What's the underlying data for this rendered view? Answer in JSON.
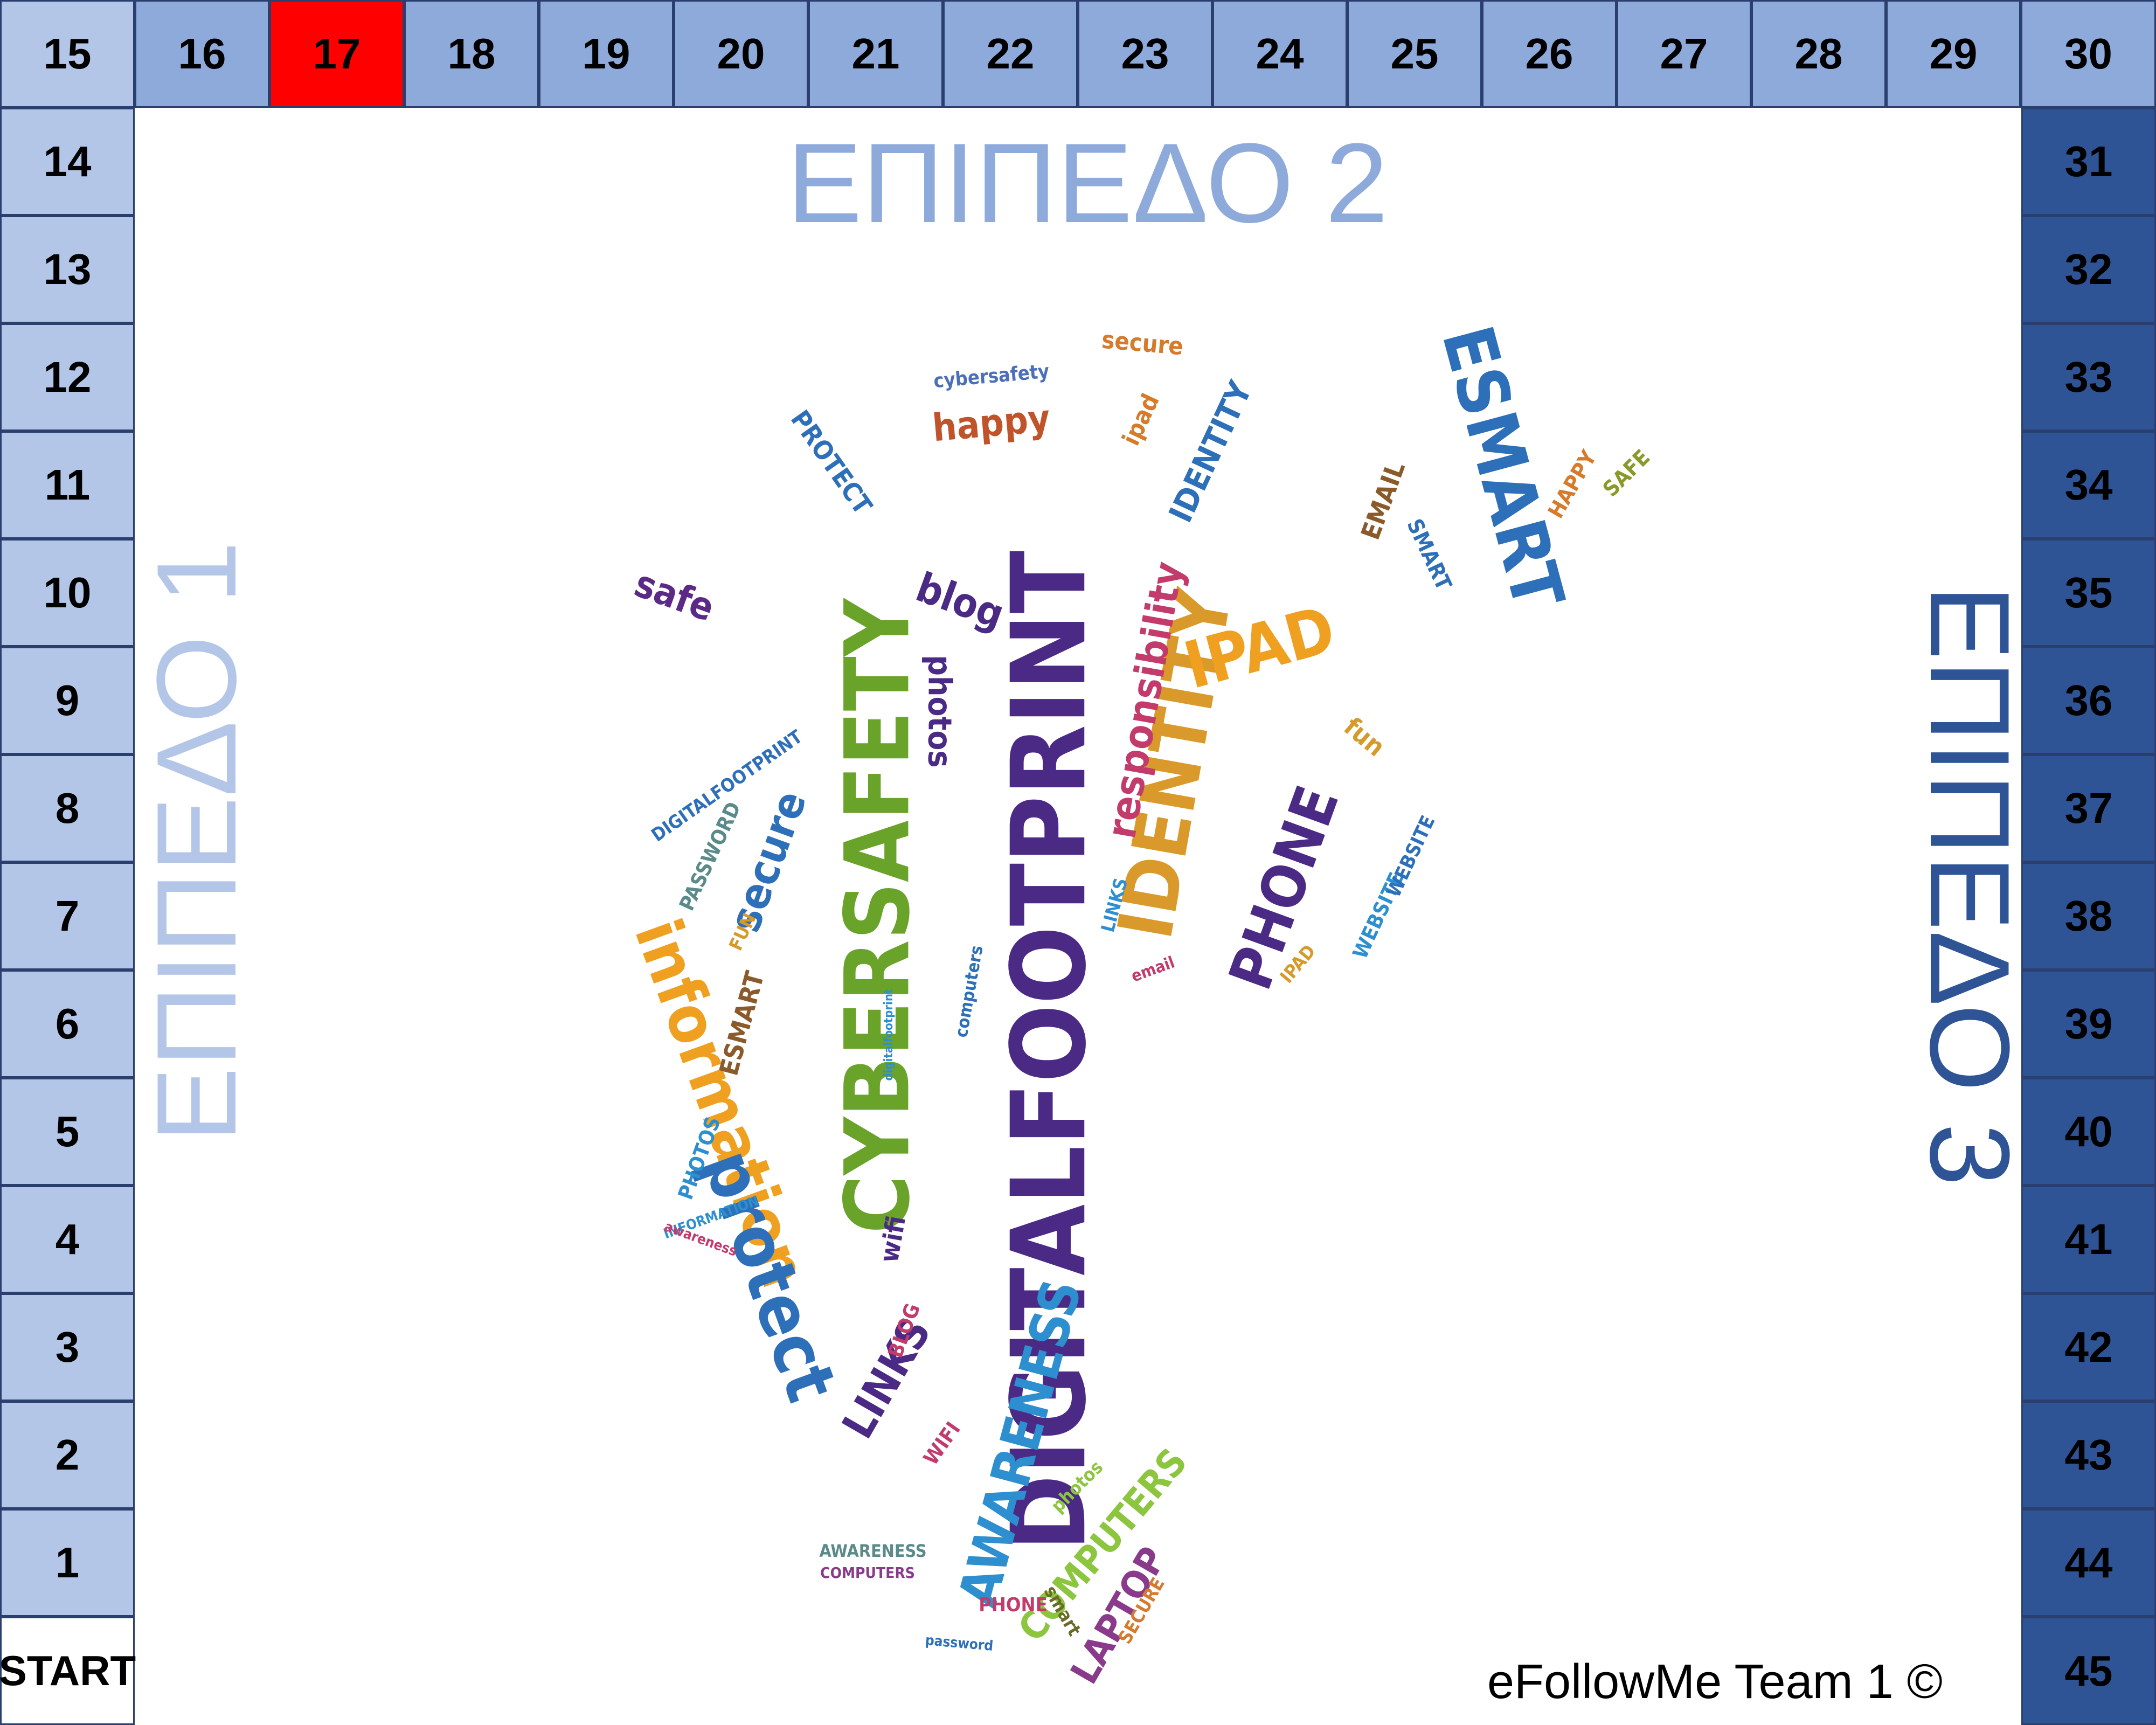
{
  "board": {
    "start_label": "START",
    "current_square": 17,
    "squares": [
      {
        "n": 15,
        "label": "15",
        "level": 1
      },
      {
        "n": 16,
        "label": "16",
        "level": 2
      },
      {
        "n": 17,
        "label": "17",
        "level": 2
      },
      {
        "n": 18,
        "label": "18",
        "level": 2
      },
      {
        "n": 19,
        "label": "19",
        "level": 2
      },
      {
        "n": 20,
        "label": "20",
        "level": 2
      },
      {
        "n": 21,
        "label": "21",
        "level": 2
      },
      {
        "n": 22,
        "label": "22",
        "level": 2
      },
      {
        "n": 23,
        "label": "23",
        "level": 2
      },
      {
        "n": 24,
        "label": "24",
        "level": 2
      },
      {
        "n": 25,
        "label": "25",
        "level": 2
      },
      {
        "n": 26,
        "label": "26",
        "level": 2
      },
      {
        "n": 27,
        "label": "27",
        "level": 2
      },
      {
        "n": 28,
        "label": "28",
        "level": 2
      },
      {
        "n": 29,
        "label": "29",
        "level": 2
      },
      {
        "n": 30,
        "label": "30",
        "level": 2
      },
      {
        "n": 14,
        "label": "14",
        "level": 1
      },
      {
        "n": 13,
        "label": "13",
        "level": 1
      },
      {
        "n": 12,
        "label": "12",
        "level": 1
      },
      {
        "n": 11,
        "label": "11",
        "level": 1
      },
      {
        "n": 10,
        "label": "10",
        "level": 1
      },
      {
        "n": 9,
        "label": "9",
        "level": 1
      },
      {
        "n": 8,
        "label": "8",
        "level": 1
      },
      {
        "n": 7,
        "label": "7",
        "level": 1
      },
      {
        "n": 6,
        "label": "6",
        "level": 1
      },
      {
        "n": 5,
        "label": "5",
        "level": 1
      },
      {
        "n": 4,
        "label": "4",
        "level": 1
      },
      {
        "n": 3,
        "label": "3",
        "level": 1
      },
      {
        "n": 2,
        "label": "2",
        "level": 1
      },
      {
        "n": 1,
        "label": "1",
        "level": 1
      },
      {
        "n": 31,
        "label": "31",
        "level": 3
      },
      {
        "n": 32,
        "label": "32",
        "level": 3
      },
      {
        "n": 33,
        "label": "33",
        "level": 3
      },
      {
        "n": 34,
        "label": "34",
        "level": 3
      },
      {
        "n": 35,
        "label": "35",
        "level": 3
      },
      {
        "n": 36,
        "label": "36",
        "level": 3
      },
      {
        "n": 37,
        "label": "37",
        "level": 3
      },
      {
        "n": 38,
        "label": "38",
        "level": 3
      },
      {
        "n": 39,
        "label": "39",
        "level": 3
      },
      {
        "n": 40,
        "label": "40",
        "level": 3
      },
      {
        "n": 41,
        "label": "41",
        "level": 3
      },
      {
        "n": 42,
        "label": "42",
        "level": 3
      },
      {
        "n": 43,
        "label": "43",
        "level": 3
      },
      {
        "n": 44,
        "label": "44",
        "level": 3
      },
      {
        "n": 45,
        "label": "45",
        "level": 3
      }
    ]
  },
  "levels": {
    "level1": "ΕΠΙΠΕΔΟ 1",
    "level2": "ΕΠΙΠΕΔΟ 2",
    "level3": "ΕΠΙΠΕΔΟ 3"
  },
  "colors": {
    "level1": "#b4c6e7",
    "level2": "#8eaadb",
    "level3": "#2f5496",
    "current": "#ff0000"
  },
  "footer": {
    "credit": "eFollowMe Team 1 ©"
  },
  "wordcloud": {
    "shape": "footprint",
    "words": [
      {
        "text": "DIGITALFOOTPRINT",
        "color": "#4b2a86"
      },
      {
        "text": "CYBERSAFETY",
        "color": "#6aa32a"
      },
      {
        "text": "IDENTITY",
        "color": "#d99a2b"
      },
      {
        "text": "information",
        "color": "#f0a020"
      },
      {
        "text": "protect",
        "color": "#2d6fb8"
      },
      {
        "text": "ESMART",
        "color": "#2d6fb8"
      },
      {
        "text": "AWARENESS",
        "color": "#2d8fcf"
      },
      {
        "text": "PHONE",
        "color": "#4b2a86"
      },
      {
        "text": "IPAD",
        "color": "#f0a020"
      },
      {
        "text": "responsibility",
        "color": "#c23b6b"
      },
      {
        "text": "secure",
        "color": "#2d6fb8"
      },
      {
        "text": "blog",
        "color": "#4b2a86"
      },
      {
        "text": "photos",
        "color": "#4b2a86"
      },
      {
        "text": "happy",
        "color": "#c0532a"
      },
      {
        "text": "safe",
        "color": "#5b2a86"
      },
      {
        "text": "LINKS",
        "color": "#4b2a86"
      },
      {
        "text": "COMPUTERS",
        "color": "#8cc63e"
      },
      {
        "text": "LAPTOP",
        "color": "#8a3a8a"
      },
      {
        "text": "IDENTITY",
        "color": "#2d6fb8"
      },
      {
        "text": "PROTECT",
        "color": "#2d6fb8"
      },
      {
        "text": "cybersafety",
        "color": "#4b6fb8"
      },
      {
        "text": "secure",
        "color": "#d67a2b"
      },
      {
        "text": "ipad",
        "color": "#d67a2b"
      },
      {
        "text": "PASSWORD",
        "color": "#5a8a8a"
      },
      {
        "text": "PHOTOS",
        "color": "#2d8fcf"
      },
      {
        "text": "INFORMATION",
        "color": "#2d8fcf"
      },
      {
        "text": "WEBSITE",
        "color": "#2d8fcf"
      },
      {
        "text": "HAPPY",
        "color": "#d67a2b"
      },
      {
        "text": "SAFE",
        "color": "#8a9a2a"
      },
      {
        "text": "EMAIL",
        "color": "#8a5a2a"
      },
      {
        "text": "SMART",
        "color": "#2d6fb8"
      },
      {
        "text": "fun",
        "color": "#d69a2b"
      },
      {
        "text": "wifi",
        "color": "#4b2a86"
      },
      {
        "text": "BLOG",
        "color": "#c23b6b"
      },
      {
        "text": "WIFI",
        "color": "#c23b6b"
      },
      {
        "text": "PHONE",
        "color": "#c23b6b"
      },
      {
        "text": "smart",
        "color": "#6a6a2a"
      },
      {
        "text": "SECURE",
        "color": "#d67a2b"
      },
      {
        "text": "photos",
        "color": "#8cc63e"
      },
      {
        "text": "password",
        "color": "#2d6fb8"
      },
      {
        "text": "ESMART",
        "color": "#8a5a2a"
      },
      {
        "text": "LINKS",
        "color": "#2d8fcf"
      },
      {
        "text": "DIGITALFOOTPRINT",
        "color": "#2d6fb8"
      },
      {
        "text": "WEBSITE",
        "color": "#2d6fb8"
      },
      {
        "text": "email",
        "color": "#c23b6b"
      },
      {
        "text": "IPAD",
        "color": "#d69a2b"
      },
      {
        "text": "awareness",
        "color": "#c23b6b"
      },
      {
        "text": "computers",
        "color": "#2d6fb8"
      },
      {
        "text": "digitalfootprint",
        "color": "#2d8fcf"
      },
      {
        "text": "AWARENESS",
        "color": "#5a8a8a"
      },
      {
        "text": "COMPUTERS",
        "color": "#8a3a8a"
      },
      {
        "text": "FUN",
        "color": "#d69a2b"
      }
    ]
  }
}
